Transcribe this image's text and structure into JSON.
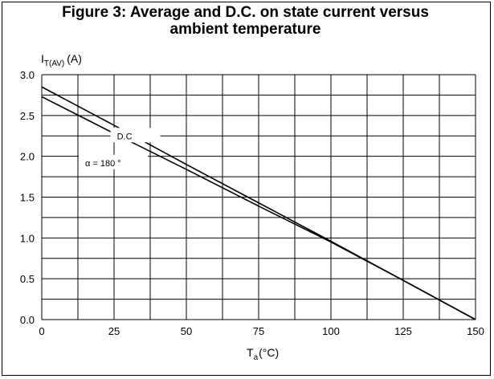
{
  "title_line1": "Figure 3: Average and D.C. on state current versus",
  "title_line2": "ambient temperature",
  "chart_data": {
    "type": "line",
    "title": "Figure 3: Average and D.C. on state current versus ambient temperature",
    "ylabel": {
      "main": "I",
      "sub": "T(AV)",
      "unit": "(A)"
    },
    "xlabel": {
      "main": "T",
      "sub": "a",
      "unit": "(°C)"
    },
    "xlim": [
      0,
      150
    ],
    "ylim": [
      0,
      3.0
    ],
    "x_ticks": [
      0,
      25,
      50,
      75,
      100,
      125,
      150
    ],
    "y_ticks": [
      0.0,
      0.5,
      1.0,
      1.5,
      2.0,
      2.5,
      3.0
    ],
    "x_tick_labels": [
      "0",
      "25",
      "50",
      "75",
      "100",
      "125",
      "150"
    ],
    "y_tick_labels": [
      "0.0",
      "0.5",
      "1.0",
      "1.5",
      "2.0",
      "2.5",
      "3.0"
    ],
    "x_minor_step": 12.5,
    "y_minor_step": 0.25,
    "grid": true,
    "series": [
      {
        "name": "D.C",
        "x": [
          0,
          25,
          50,
          75,
          100,
          125,
          150
        ],
        "y": [
          2.85,
          2.38,
          1.9,
          1.43,
          0.96,
          0.48,
          0.0
        ]
      },
      {
        "name": "α = 180 °",
        "x": [
          0,
          25,
          50,
          75,
          100,
          125,
          150
        ],
        "y": [
          2.73,
          2.28,
          1.84,
          1.39,
          0.95,
          0.48,
          0.0
        ]
      }
    ],
    "annotations": [
      {
        "text": "D.C",
        "x": 26,
        "y": 2.25
      },
      {
        "text": "α = 180 °",
        "x": 15,
        "y": 1.92
      }
    ]
  }
}
